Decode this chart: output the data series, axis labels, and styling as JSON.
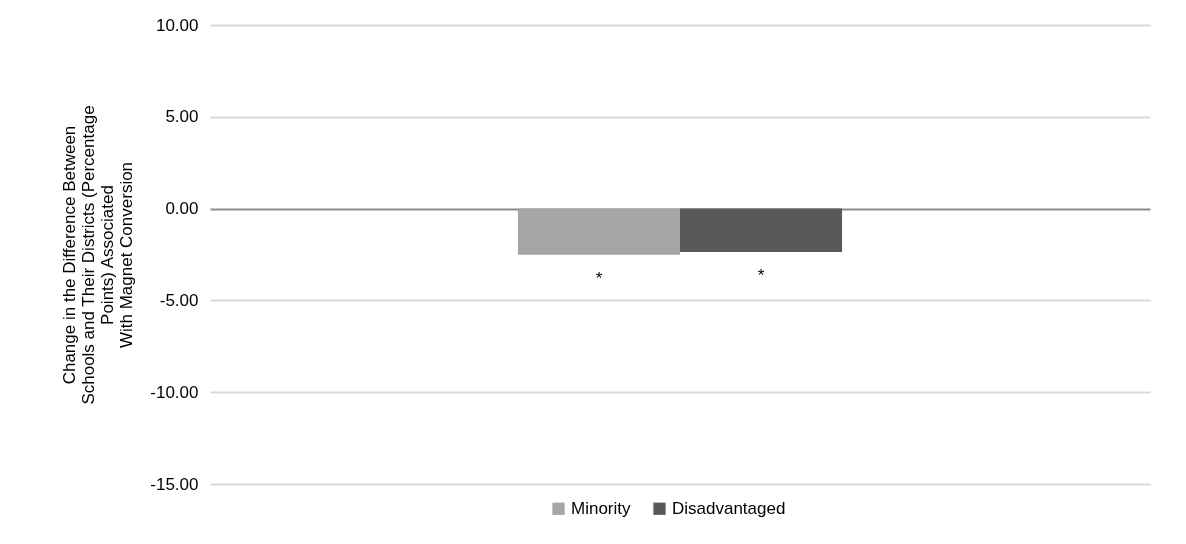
{
  "chart_data": {
    "type": "bar",
    "ylabel": "Change in the Difference Between\nSchools and Their Districts (Percentage\nPoints) Associated\nWith Magnet Conversion",
    "categories": [
      null
    ],
    "series": [
      {
        "name": "Minority",
        "color": "#a5a5a5",
        "values": [
          -2.51
        ]
      },
      {
        "name": "Disadvantaged",
        "color": "#595959",
        "values": [
          -2.36
        ]
      }
    ],
    "ylim": [
      -15,
      10
    ],
    "yticks": [
      {
        "value": -15,
        "label": "-15.00"
      },
      {
        "value": -10,
        "label": "-10.00"
      },
      {
        "value": -5,
        "label": "-5.00"
      },
      {
        "value": 0,
        "label": "0.00"
      },
      {
        "value": 5,
        "label": "5.00"
      },
      {
        "value": 10,
        "label": "10.00"
      }
    ],
    "grid": true,
    "legend": "bottom",
    "tick_labels": "y",
    "annotations": [
      "*",
      "*"
    ]
  }
}
